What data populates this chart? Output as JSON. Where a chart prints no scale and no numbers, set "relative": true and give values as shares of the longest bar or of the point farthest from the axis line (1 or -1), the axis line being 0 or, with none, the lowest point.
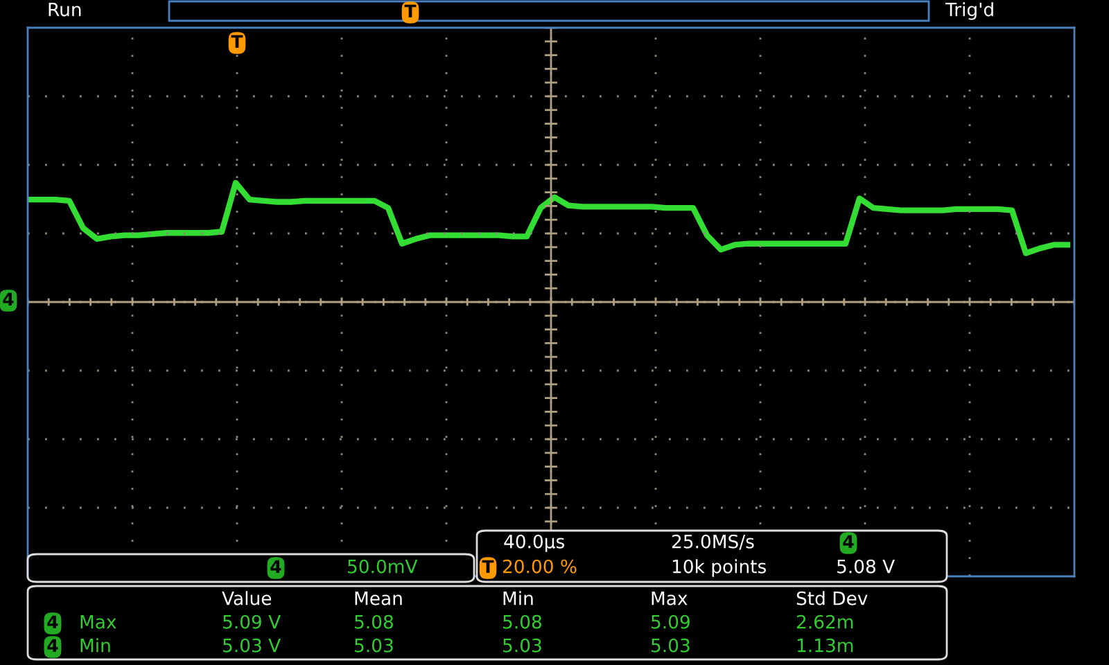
{
  "chart_data": {
    "type": "line",
    "relative": true,
    "grid": true,
    "legend": false,
    "tick_labels": false,
    "marker": "none",
    "line_style": "solid",
    "categories": [
      null,
      null,
      null,
      null,
      null,
      null,
      null,
      null,
      null,
      null,
      null,
      null,
      null,
      null,
      null,
      null,
      null,
      null,
      null,
      null,
      null,
      null,
      null,
      null,
      null,
      null,
      null,
      null,
      null,
      null,
      null,
      null,
      null,
      null,
      null,
      null,
      null,
      null,
      null,
      null,
      null,
      null,
      null,
      null,
      null,
      null,
      null,
      null,
      null,
      null,
      null,
      null,
      null,
      null,
      null,
      null,
      null,
      null,
      null,
      null,
      null,
      null,
      null,
      null,
      null,
      null,
      null,
      null,
      null,
      null,
      null,
      null,
      null,
      null,
      null,
      null
    ],
    "series": [
      {
        "color": "#33dd33",
        "values": [
          0.86,
          0.86,
          0.86,
          0.85,
          0.62,
          0.53,
          0.55,
          0.56,
          0.56,
          0.57,
          0.58,
          0.58,
          0.58,
          0.58,
          0.59,
          1.0,
          0.86,
          0.85,
          0.84,
          0.84,
          0.85,
          0.85,
          0.85,
          0.85,
          0.85,
          0.85,
          0.79,
          0.49,
          0.53,
          0.56,
          0.56,
          0.56,
          0.56,
          0.56,
          0.56,
          0.55,
          0.55,
          0.79,
          0.88,
          0.81,
          0.8,
          0.8,
          0.8,
          0.8,
          0.8,
          0.8,
          0.79,
          0.79,
          0.79,
          0.56,
          0.44,
          0.48,
          0.49,
          0.49,
          0.49,
          0.49,
          0.49,
          0.49,
          0.49,
          0.49,
          0.87,
          0.79,
          0.78,
          0.77,
          0.77,
          0.77,
          0.77,
          0.78,
          0.78,
          0.78,
          0.78,
          0.77,
          0.41,
          0.45,
          0.48,
          0.48
        ]
      }
    ],
    "annotations": [
      "Run",
      "Trig'd",
      "T",
      "T",
      "4",
      "4",
      "50.0mV",
      "40.0µs",
      "25.0MS/s",
      "4",
      "T",
      "20.00 %",
      "10k points",
      "5.08 V",
      "Value",
      "Mean",
      "Min",
      "Max",
      "Std Dev",
      "4",
      "Max",
      "5.09 V",
      "5.08",
      "5.08",
      "5.09",
      "2.62m",
      "4",
      "Min",
      "5.03 V",
      "5.03",
      "5.03",
      "5.03",
      "1.13m"
    ]
  }
}
